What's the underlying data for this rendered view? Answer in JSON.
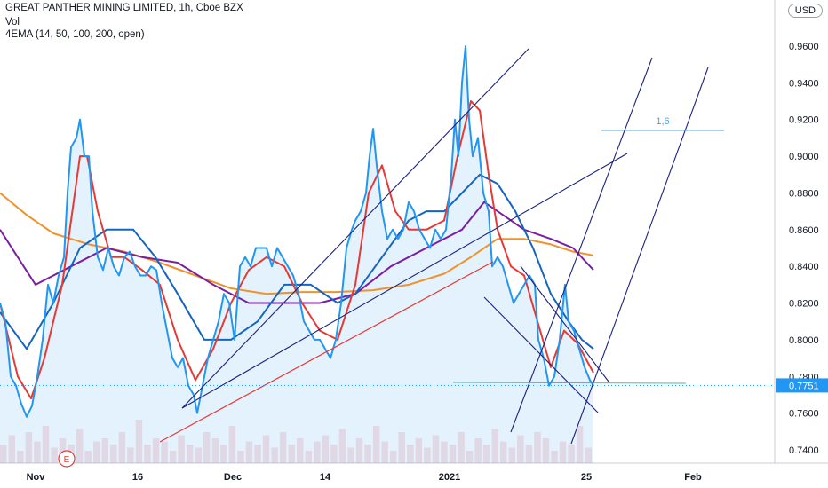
{
  "header": {
    "title": "GREAT PANTHER MINING LIMITED, 1h, Cboe BZX",
    "volume_label": "Vol",
    "indicator_label": "4EMA (14, 50, 100, 200, open)"
  },
  "currency": "USD",
  "colors": {
    "price": "#2196f3",
    "ema14": "#e53935",
    "ema50": "#1565c0",
    "ema100": "#7b1fa2",
    "ema200": "#f0922b",
    "trendline": "#1a237e",
    "support_line": "#e53935",
    "price_label_bg": "#2196f3",
    "fib_text": "#42a5f5"
  },
  "chart_data": {
    "type": "line",
    "ylim": [
      0.735,
      0.97
    ],
    "yticks": [
      "0.9600",
      "0.9400",
      "0.9200",
      "0.9000",
      "0.8800",
      "0.8600",
      "0.8400",
      "0.8200",
      "0.8000",
      "0.7800",
      "0.7600",
      "0.7400"
    ],
    "xticks": [
      "Nov",
      "16",
      "Dec",
      "14",
      "2021",
      "25",
      "Feb"
    ],
    "last_price": "0.7751",
    "annotation_text": "1,6",
    "earnings_marker": "E",
    "series": [
      {
        "name": "Price",
        "points": [
          [
            0,
            0.82
          ],
          [
            6,
            0.81
          ],
          [
            12,
            0.78
          ],
          [
            18,
            0.775
          ],
          [
            24,
            0.765
          ],
          [
            30,
            0.758
          ],
          [
            36,
            0.764
          ],
          [
            42,
            0.78
          ],
          [
            48,
            0.8
          ],
          [
            54,
            0.83
          ],
          [
            60,
            0.82
          ],
          [
            66,
            0.835
          ],
          [
            72,
            0.845
          ],
          [
            76,
            0.88
          ],
          [
            80,
            0.905
          ],
          [
            86,
            0.91
          ],
          [
            90,
            0.92
          ],
          [
            95,
            0.9
          ],
          [
            100,
            0.9
          ],
          [
            104,
            0.87
          ],
          [
            110,
            0.845
          ],
          [
            116,
            0.838
          ],
          [
            122,
            0.85
          ],
          [
            128,
            0.84
          ],
          [
            134,
            0.835
          ],
          [
            140,
            0.845
          ],
          [
            146,
            0.848
          ],
          [
            152,
            0.84
          ],
          [
            158,
            0.835
          ],
          [
            164,
            0.835
          ],
          [
            170,
            0.84
          ],
          [
            176,
            0.838
          ],
          [
            182,
            0.82
          ],
          [
            188,
            0.805
          ],
          [
            194,
            0.79
          ],
          [
            200,
            0.785
          ],
          [
            206,
            0.79
          ],
          [
            212,
            0.775
          ],
          [
            218,
            0.77
          ],
          [
            222,
            0.76
          ],
          [
            228,
            0.775
          ],
          [
            234,
            0.79
          ],
          [
            240,
            0.8
          ],
          [
            246,
            0.81
          ],
          [
            252,
            0.825
          ],
          [
            258,
            0.82
          ],
          [
            264,
            0.8
          ],
          [
            270,
            0.84
          ],
          [
            276,
            0.845
          ],
          [
            282,
            0.84
          ],
          [
            288,
            0.85
          ],
          [
            294,
            0.85
          ],
          [
            300,
            0.85
          ],
          [
            306,
            0.84
          ],
          [
            312,
            0.85
          ],
          [
            318,
            0.845
          ],
          [
            324,
            0.84
          ],
          [
            330,
            0.835
          ],
          [
            336,
            0.825
          ],
          [
            342,
            0.81
          ],
          [
            348,
            0.805
          ],
          [
            354,
            0.8
          ],
          [
            360,
            0.8
          ],
          [
            366,
            0.795
          ],
          [
            372,
            0.79
          ],
          [
            378,
            0.8
          ],
          [
            384,
            0.82
          ],
          [
            390,
            0.85
          ],
          [
            396,
            0.86
          ],
          [
            400,
            0.865
          ],
          [
            406,
            0.87
          ],
          [
            412,
            0.88
          ],
          [
            416,
            0.9
          ],
          [
            420,
            0.915
          ],
          [
            424,
            0.895
          ],
          [
            430,
            0.87
          ],
          [
            436,
            0.855
          ],
          [
            442,
            0.86
          ],
          [
            448,
            0.855
          ],
          [
            454,
            0.86
          ],
          [
            460,
            0.875
          ],
          [
            466,
            0.87
          ],
          [
            472,
            0.86
          ],
          [
            478,
            0.855
          ],
          [
            484,
            0.85
          ],
          [
            490,
            0.86
          ],
          [
            496,
            0.855
          ],
          [
            502,
            0.86
          ],
          [
            508,
            0.89
          ],
          [
            512,
            0.92
          ],
          [
            516,
            0.9
          ],
          [
            520,
            0.94
          ],
          [
            524,
            0.96
          ],
          [
            528,
            0.92
          ],
          [
            532,
            0.9
          ],
          [
            538,
            0.91
          ],
          [
            544,
            0.88
          ],
          [
            550,
            0.87
          ],
          [
            554,
            0.84
          ],
          [
            560,
            0.845
          ],
          [
            566,
            0.84
          ],
          [
            572,
            0.83
          ],
          [
            578,
            0.82
          ],
          [
            584,
            0.825
          ],
          [
            590,
            0.83
          ],
          [
            596,
            0.835
          ],
          [
            602,
            0.83
          ],
          [
            606,
            0.8
          ],
          [
            612,
            0.79
          ],
          [
            618,
            0.775
          ],
          [
            624,
            0.78
          ],
          [
            630,
            0.8
          ],
          [
            636,
            0.83
          ],
          [
            640,
            0.81
          ],
          [
            646,
            0.805
          ],
          [
            652,
            0.795
          ],
          [
            658,
            0.785
          ],
          [
            664,
            0.778
          ],
          [
            668,
            0.775
          ]
        ]
      },
      {
        "name": "EMA 14",
        "points": [
          [
            0,
            0.82
          ],
          [
            20,
            0.78
          ],
          [
            35,
            0.768
          ],
          [
            50,
            0.79
          ],
          [
            70,
            0.83
          ],
          [
            90,
            0.9
          ],
          [
            98,
            0.9
          ],
          [
            110,
            0.87
          ],
          [
            125,
            0.845
          ],
          [
            140,
            0.845
          ],
          [
            160,
            0.838
          ],
          [
            180,
            0.83
          ],
          [
            200,
            0.8
          ],
          [
            220,
            0.778
          ],
          [
            240,
            0.795
          ],
          [
            260,
            0.82
          ],
          [
            280,
            0.838
          ],
          [
            300,
            0.845
          ],
          [
            320,
            0.84
          ],
          [
            340,
            0.82
          ],
          [
            360,
            0.805
          ],
          [
            380,
            0.8
          ],
          [
            400,
            0.83
          ],
          [
            415,
            0.88
          ],
          [
            430,
            0.895
          ],
          [
            445,
            0.87
          ],
          [
            460,
            0.86
          ],
          [
            480,
            0.86
          ],
          [
            500,
            0.865
          ],
          [
            515,
            0.9
          ],
          [
            530,
            0.93
          ],
          [
            540,
            0.925
          ],
          [
            550,
            0.89
          ],
          [
            560,
            0.86
          ],
          [
            575,
            0.84
          ],
          [
            590,
            0.835
          ],
          [
            605,
            0.81
          ],
          [
            620,
            0.785
          ],
          [
            635,
            0.805
          ],
          [
            650,
            0.798
          ],
          [
            668,
            0.782
          ]
        ]
      },
      {
        "name": "EMA 50",
        "points": [
          [
            0,
            0.815
          ],
          [
            30,
            0.795
          ],
          [
            60,
            0.82
          ],
          [
            90,
            0.85
          ],
          [
            120,
            0.86
          ],
          [
            150,
            0.86
          ],
          [
            175,
            0.845
          ],
          [
            200,
            0.825
          ],
          [
            230,
            0.8
          ],
          [
            260,
            0.8
          ],
          [
            290,
            0.81
          ],
          [
            320,
            0.83
          ],
          [
            350,
            0.83
          ],
          [
            380,
            0.82
          ],
          [
            400,
            0.825
          ],
          [
            430,
            0.845
          ],
          [
            460,
            0.865
          ],
          [
            480,
            0.87
          ],
          [
            500,
            0.87
          ],
          [
            520,
            0.88
          ],
          [
            540,
            0.89
          ],
          [
            560,
            0.885
          ],
          [
            580,
            0.87
          ],
          [
            600,
            0.85
          ],
          [
            620,
            0.825
          ],
          [
            640,
            0.81
          ],
          [
            655,
            0.8
          ],
          [
            668,
            0.795
          ]
        ]
      },
      {
        "name": "EMA 100",
        "points": [
          [
            0,
            0.86
          ],
          [
            40,
            0.83
          ],
          [
            80,
            0.84
          ],
          [
            120,
            0.85
          ],
          [
            160,
            0.845
          ],
          [
            200,
            0.842
          ],
          [
            240,
            0.83
          ],
          [
            280,
            0.82
          ],
          [
            320,
            0.82
          ],
          [
            360,
            0.82
          ],
          [
            400,
            0.825
          ],
          [
            440,
            0.84
          ],
          [
            480,
            0.85
          ],
          [
            520,
            0.86
          ],
          [
            545,
            0.875
          ],
          [
            560,
            0.87
          ],
          [
            590,
            0.86
          ],
          [
            620,
            0.855
          ],
          [
            645,
            0.85
          ],
          [
            668,
            0.838
          ]
        ]
      },
      {
        "name": "EMA 200",
        "points": [
          [
            0,
            0.88
          ],
          [
            30,
            0.868
          ],
          [
            60,
            0.858
          ],
          [
            100,
            0.852
          ],
          [
            140,
            0.848
          ],
          [
            180,
            0.842
          ],
          [
            220,
            0.835
          ],
          [
            260,
            0.828
          ],
          [
            300,
            0.825
          ],
          [
            340,
            0.826
          ],
          [
            380,
            0.826
          ],
          [
            420,
            0.827
          ],
          [
            460,
            0.83
          ],
          [
            500,
            0.836
          ],
          [
            530,
            0.845
          ],
          [
            560,
            0.855
          ],
          [
            590,
            0.855
          ],
          [
            620,
            0.852
          ],
          [
            645,
            0.848
          ],
          [
            668,
            0.846
          ]
        ]
      }
    ],
    "volume": [
      0.3,
      0.45,
      0.2,
      0.5,
      0.35,
      0.6,
      0.25,
      0.4,
      0.3,
      0.55,
      0.2,
      0.35,
      0.4,
      0.3,
      0.5,
      0.25,
      0.7,
      0.3,
      0.4,
      0.35,
      0.2,
      0.45,
      0.3,
      0.25,
      0.5,
      0.4,
      0.3,
      0.6,
      0.2,
      0.35,
      0.3,
      0.45,
      0.25,
      0.5,
      0.3,
      0.4,
      0.2,
      0.35,
      0.45,
      0.3,
      0.55,
      0.25,
      0.4,
      0.3,
      0.6,
      0.35,
      0.2,
      0.5,
      0.3,
      0.4,
      0.25,
      0.45,
      0.35,
      0.3,
      0.5,
      0.2,
      0.4,
      0.3,
      0.55,
      0.35,
      0.25,
      0.45,
      0.3,
      0.5,
      0.4,
      0.2,
      0.35,
      0.3,
      0.6,
      0.25
    ]
  }
}
